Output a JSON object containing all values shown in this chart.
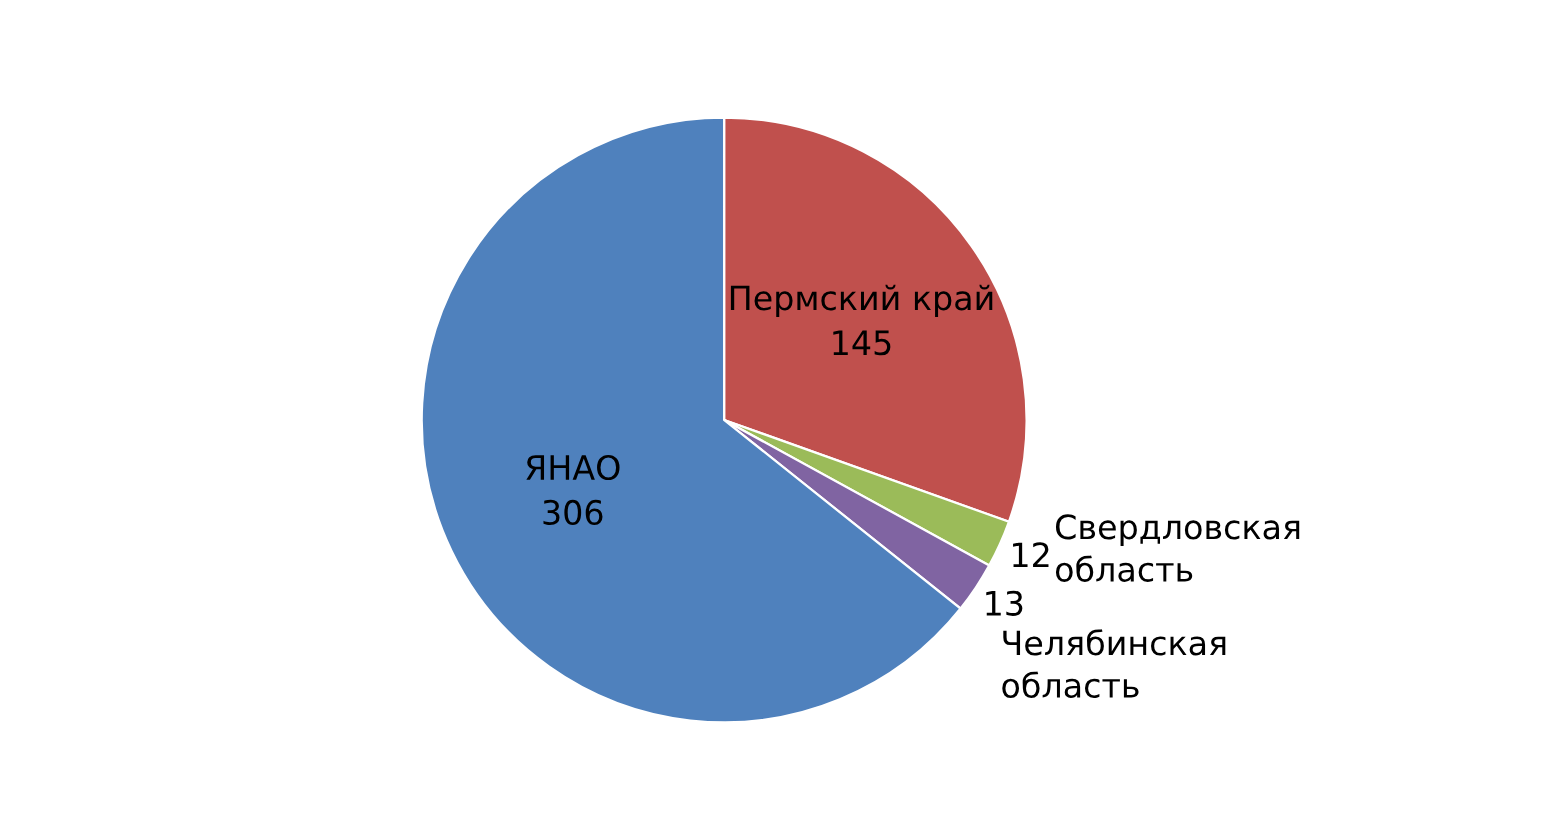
{
  "chart_data": {
    "type": "pie",
    "categories": [
      "Пермский край",
      "Свердловская область",
      "Челябинская область",
      "ЯНАО"
    ],
    "values": [
      145,
      12,
      13,
      306
    ],
    "colors": [
      "#c0504d",
      "#9bbb59",
      "#8064a2",
      "#4f81bd"
    ],
    "data_labels": true
  }
}
